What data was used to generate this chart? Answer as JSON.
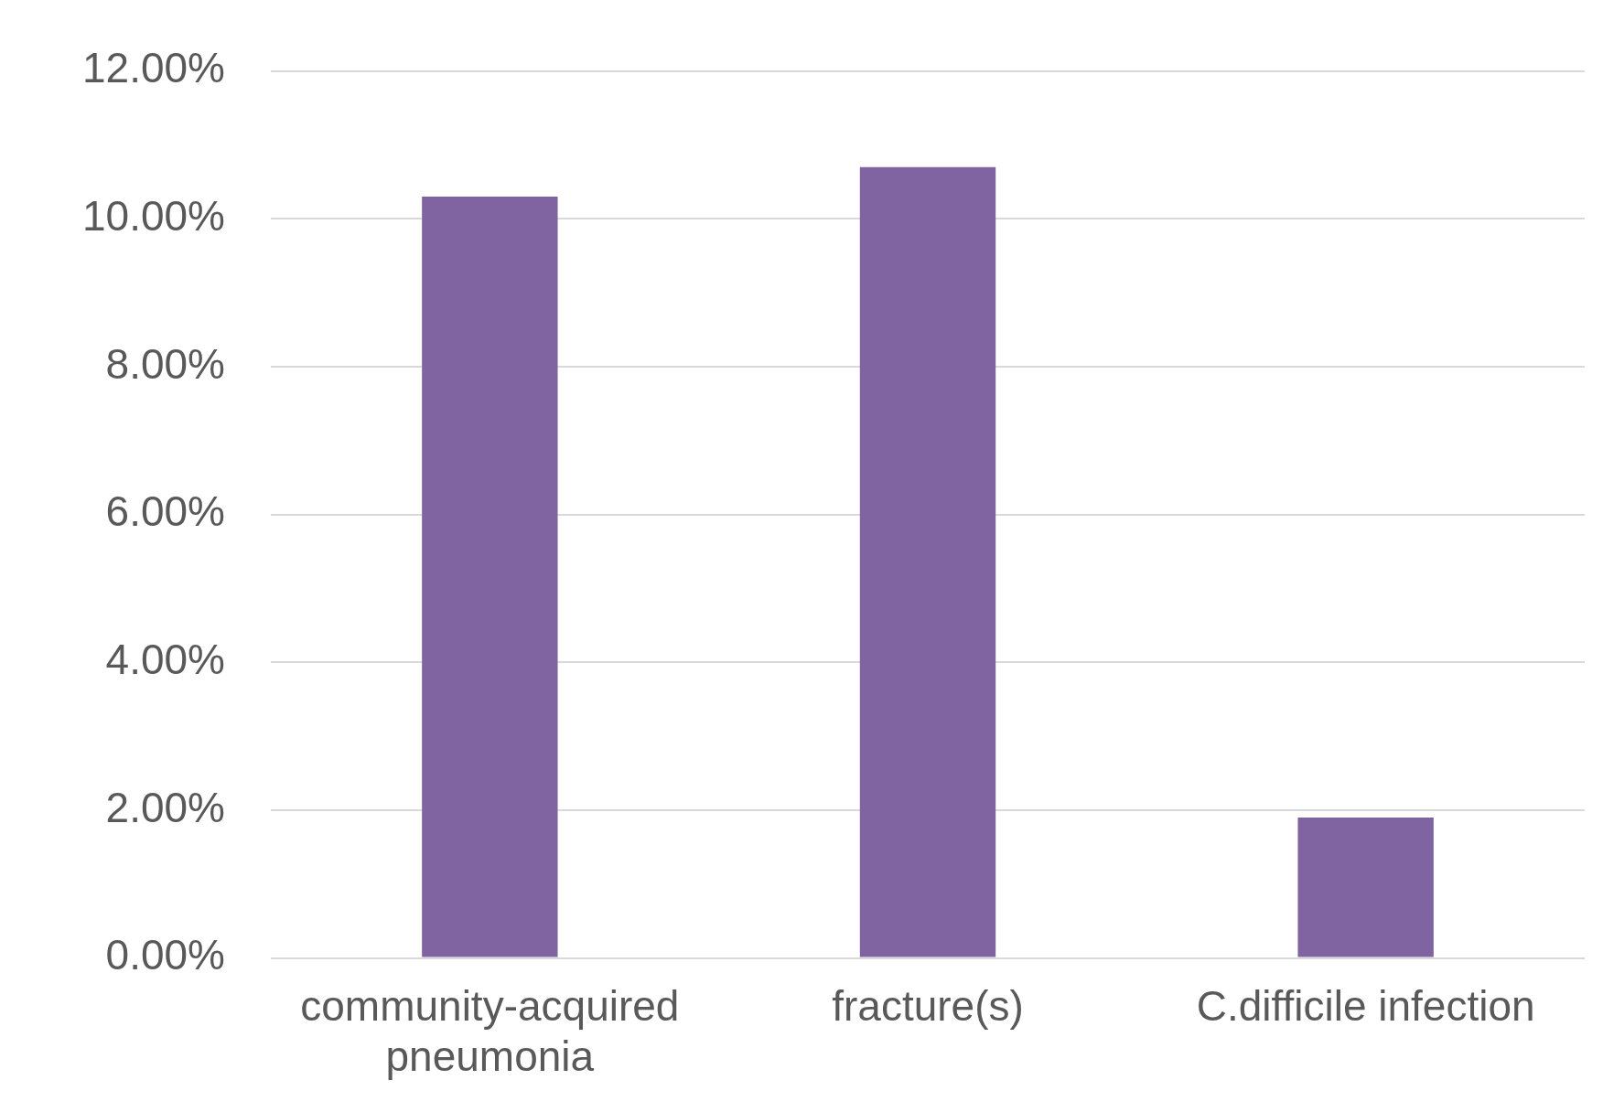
{
  "chart_data": {
    "type": "bar",
    "categories": [
      "community-acquired pneumonia",
      "fracture(s)",
      "C.difficile infection"
    ],
    "values": [
      10.3,
      10.7,
      1.9
    ],
    "color": "#8064a2",
    "ylim": [
      0,
      12
    ],
    "yticks": [
      {
        "value": 0,
        "label": "0.00%"
      },
      {
        "value": 2,
        "label": "2.00%"
      },
      {
        "value": 4,
        "label": "4.00%"
      },
      {
        "value": 6,
        "label": "6.00%"
      },
      {
        "value": 8,
        "label": "8.00%"
      },
      {
        "value": 10,
        "label": "10.00%"
      },
      {
        "value": 12,
        "label": "12.00%"
      }
    ],
    "grid": "y"
  }
}
